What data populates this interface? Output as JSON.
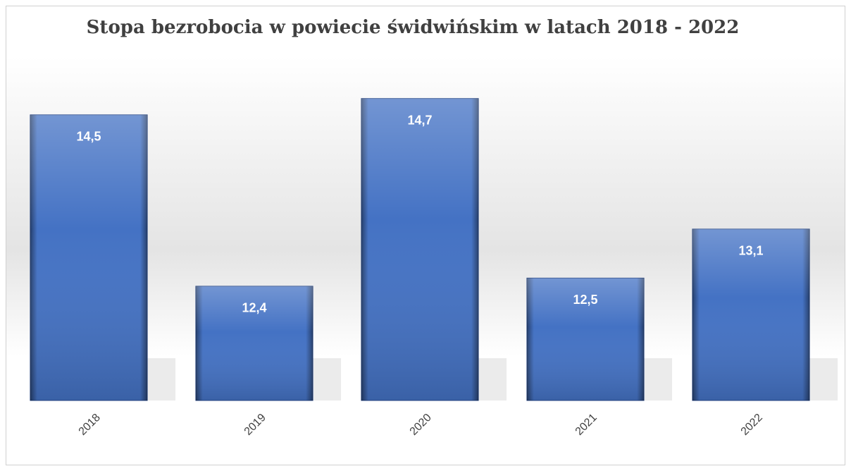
{
  "chart_data": {
    "type": "bar",
    "title": "Stopa bezrobocia w powiecie świdwińskim  w latach 2018 - 2022",
    "categories": [
      "2018",
      "2019",
      "2020",
      "2021",
      "2022"
    ],
    "values": [
      14.5,
      12.4,
      14.7,
      12.5,
      13.1
    ],
    "value_labels": [
      "14,5",
      "12,4",
      "14,7",
      "12,5",
      "13,1"
    ],
    "color": "#4472c4",
    "ylim": [
      11,
      15
    ]
  }
}
